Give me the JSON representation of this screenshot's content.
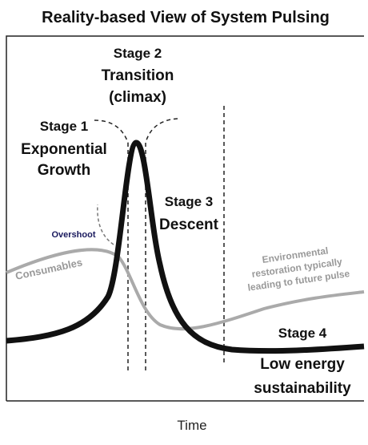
{
  "title": "Reality-based View of System Pulsing",
  "stages": [
    {
      "label": "Stage 1",
      "lines": [
        "Exponential",
        "Growth"
      ]
    },
    {
      "label": "Stage 2",
      "lines": [
        "Transition",
        "(climax)"
      ]
    },
    {
      "label": "Stage 3",
      "lines": [
        "Descent"
      ]
    },
    {
      "label": "Stage 4",
      "lines": [
        "Low energy",
        "sustainability"
      ]
    }
  ],
  "annotations": {
    "overshoot": "Overshoot",
    "consumables": "Consumables",
    "restoration": [
      "Environmental",
      "restoration typically",
      "leading to future pulse"
    ]
  },
  "x_axis_label": "Time"
}
